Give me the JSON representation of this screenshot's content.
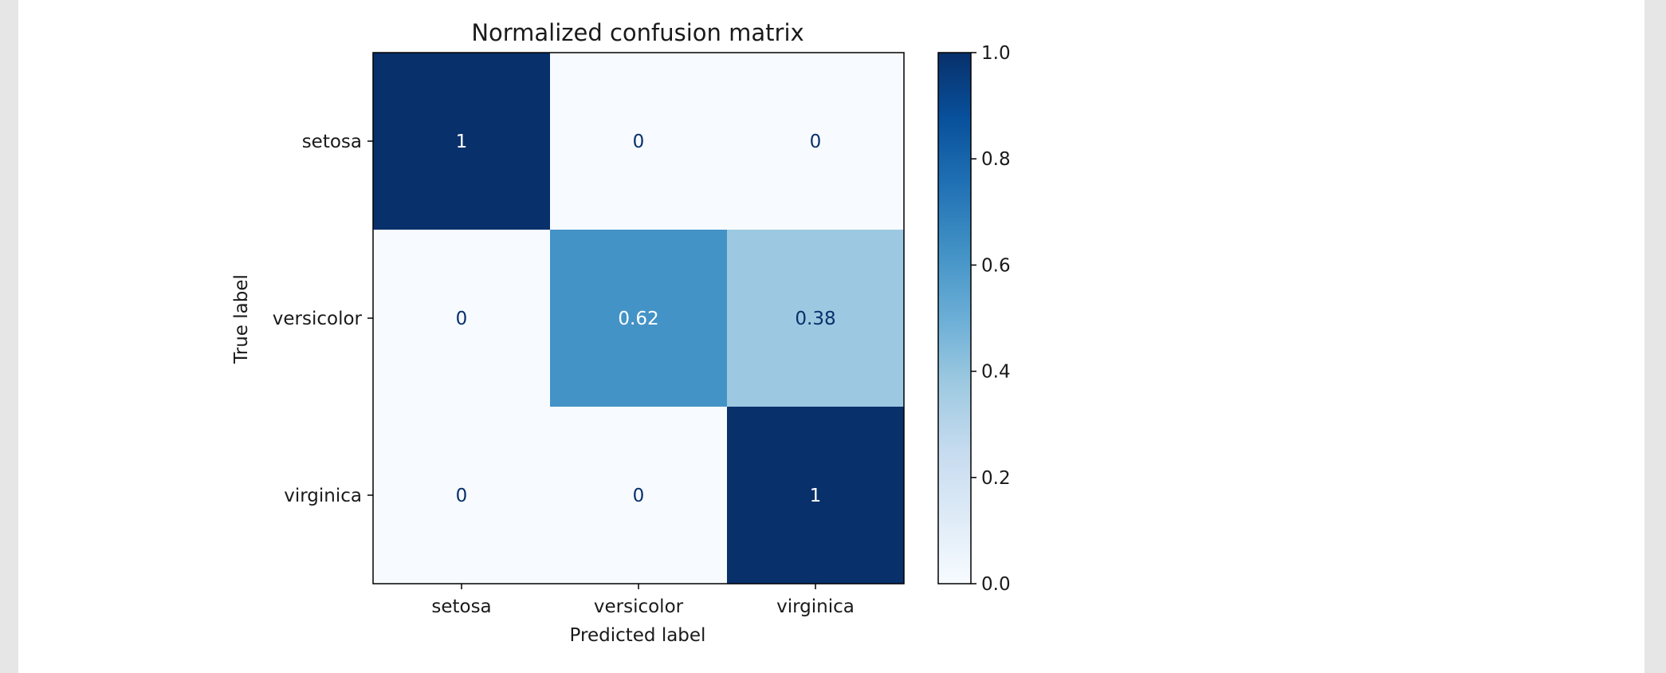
{
  "colors": {
    "page_background": "#ffffff",
    "outer_background": "#e6e6e6",
    "colormap": "Blues",
    "colormap_stops": [
      "#f7fbff",
      "#deebf7",
      "#c6dbef",
      "#9ecae1",
      "#6baed6",
      "#4292c6",
      "#2171b5",
      "#08519c",
      "#08306b"
    ],
    "text_dark": "#1a1a1a",
    "text_on_light_cell": "#08306b",
    "text_on_dark_cell": "#ffffff"
  },
  "chart_data": {
    "type": "heatmap",
    "title": "Normalized confusion matrix",
    "xlabel": "Predicted label",
    "ylabel": "True label",
    "x_categories": [
      "setosa",
      "versicolor",
      "virginica"
    ],
    "y_categories": [
      "setosa",
      "versicolor",
      "virginica"
    ],
    "values": [
      [
        1,
        0,
        0
      ],
      [
        0,
        0.62,
        0.38
      ],
      [
        0,
        0,
        1
      ]
    ],
    "cell_labels": [
      [
        "1",
        "0",
        "0"
      ],
      [
        "0",
        "0.62",
        "0.38"
      ],
      [
        "0",
        "0",
        "1"
      ]
    ],
    "colorbar": {
      "range": [
        0,
        1
      ],
      "ticks": [
        0.0,
        0.2,
        0.4,
        0.6,
        0.8,
        1.0
      ],
      "tick_labels": [
        "0.0",
        "0.2",
        "0.4",
        "0.6",
        "0.8",
        "1.0"
      ]
    },
    "grid": false,
    "legend": "colorbar-right"
  }
}
